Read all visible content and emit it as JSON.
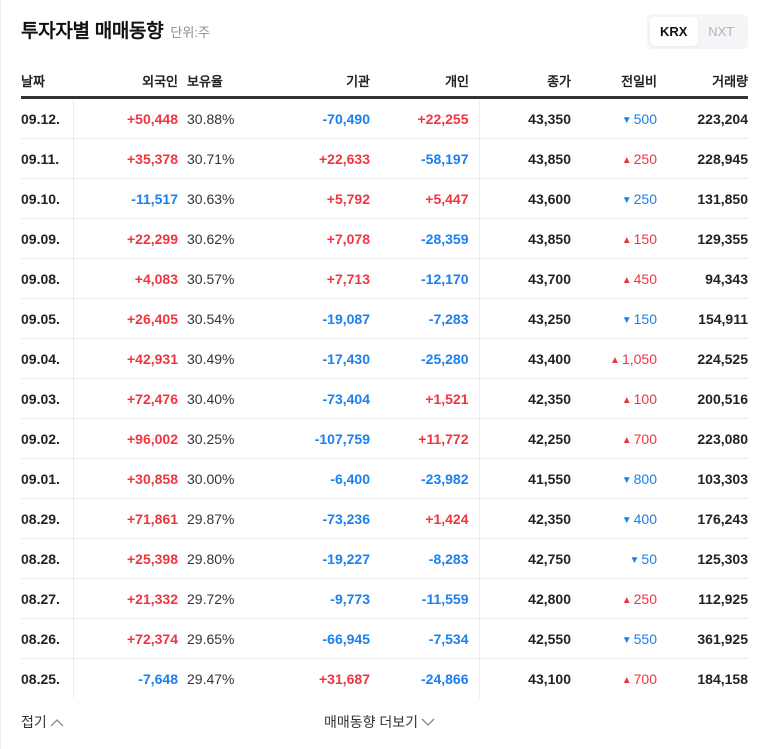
{
  "header": {
    "title": "투자자별 매매동향",
    "unit": "단위:주"
  },
  "market_toggle": {
    "options": [
      {
        "label": "KRX",
        "active": true
      },
      {
        "label": "NXT",
        "active": false
      }
    ]
  },
  "colors": {
    "up": "#f2343f",
    "down": "#1a7ff0"
  },
  "table": {
    "columns": [
      "날짜",
      "외국인",
      "보유율",
      "기관",
      "개인",
      "종가",
      "전일비",
      "거래량"
    ],
    "rows": [
      {
        "date": "09.12.",
        "foreign": "+50,448",
        "ratio": "30.88%",
        "institution": "-70,490",
        "individual": "+22,255",
        "close": "43,350",
        "change_dir": "down",
        "change": "500",
        "volume": "223,204"
      },
      {
        "date": "09.11.",
        "foreign": "+35,378",
        "ratio": "30.71%",
        "institution": "+22,633",
        "individual": "-58,197",
        "close": "43,850",
        "change_dir": "up",
        "change": "250",
        "volume": "228,945"
      },
      {
        "date": "09.10.",
        "foreign": "-11,517",
        "ratio": "30.63%",
        "institution": "+5,792",
        "individual": "+5,447",
        "close": "43,600",
        "change_dir": "down",
        "change": "250",
        "volume": "131,850"
      },
      {
        "date": "09.09.",
        "foreign": "+22,299",
        "ratio": "30.62%",
        "institution": "+7,078",
        "individual": "-28,359",
        "close": "43,850",
        "change_dir": "up",
        "change": "150",
        "volume": "129,355"
      },
      {
        "date": "09.08.",
        "foreign": "+4,083",
        "ratio": "30.57%",
        "institution": "+7,713",
        "individual": "-12,170",
        "close": "43,700",
        "change_dir": "up",
        "change": "450",
        "volume": "94,343"
      },
      {
        "date": "09.05.",
        "foreign": "+26,405",
        "ratio": "30.54%",
        "institution": "-19,087",
        "individual": "-7,283",
        "close": "43,250",
        "change_dir": "down",
        "change": "150",
        "volume": "154,911"
      },
      {
        "date": "09.04.",
        "foreign": "+42,931",
        "ratio": "30.49%",
        "institution": "-17,430",
        "individual": "-25,280",
        "close": "43,400",
        "change_dir": "up",
        "change": "1,050",
        "volume": "224,525"
      },
      {
        "date": "09.03.",
        "foreign": "+72,476",
        "ratio": "30.40%",
        "institution": "-73,404",
        "individual": "+1,521",
        "close": "42,350",
        "change_dir": "up",
        "change": "100",
        "volume": "200,516"
      },
      {
        "date": "09.02.",
        "foreign": "+96,002",
        "ratio": "30.25%",
        "institution": "-107,759",
        "individual": "+11,772",
        "close": "42,250",
        "change_dir": "up",
        "change": "700",
        "volume": "223,080"
      },
      {
        "date": "09.01.",
        "foreign": "+30,858",
        "ratio": "30.00%",
        "institution": "-6,400",
        "individual": "-23,982",
        "close": "41,550",
        "change_dir": "down",
        "change": "800",
        "volume": "103,303"
      },
      {
        "date": "08.29.",
        "foreign": "+71,861",
        "ratio": "29.87%",
        "institution": "-73,236",
        "individual": "+1,424",
        "close": "42,350",
        "change_dir": "down",
        "change": "400",
        "volume": "176,243"
      },
      {
        "date": "08.28.",
        "foreign": "+25,398",
        "ratio": "29.80%",
        "institution": "-19,227",
        "individual": "-8,283",
        "close": "42,750",
        "change_dir": "down",
        "change": "50",
        "volume": "125,303"
      },
      {
        "date": "08.27.",
        "foreign": "+21,332",
        "ratio": "29.72%",
        "institution": "-9,773",
        "individual": "-11,559",
        "close": "42,800",
        "change_dir": "up",
        "change": "250",
        "volume": "112,925"
      },
      {
        "date": "08.26.",
        "foreign": "+72,374",
        "ratio": "29.65%",
        "institution": "-66,945",
        "individual": "-7,534",
        "close": "42,550",
        "change_dir": "down",
        "change": "550",
        "volume": "361,925"
      },
      {
        "date": "08.25.",
        "foreign": "-7,648",
        "ratio": "29.47%",
        "institution": "+31,687",
        "individual": "-24,866",
        "close": "43,100",
        "change_dir": "up",
        "change": "700",
        "volume": "184,158"
      }
    ]
  },
  "footer": {
    "collapse_label": "접기",
    "more_label": "매매동향 더보기"
  }
}
